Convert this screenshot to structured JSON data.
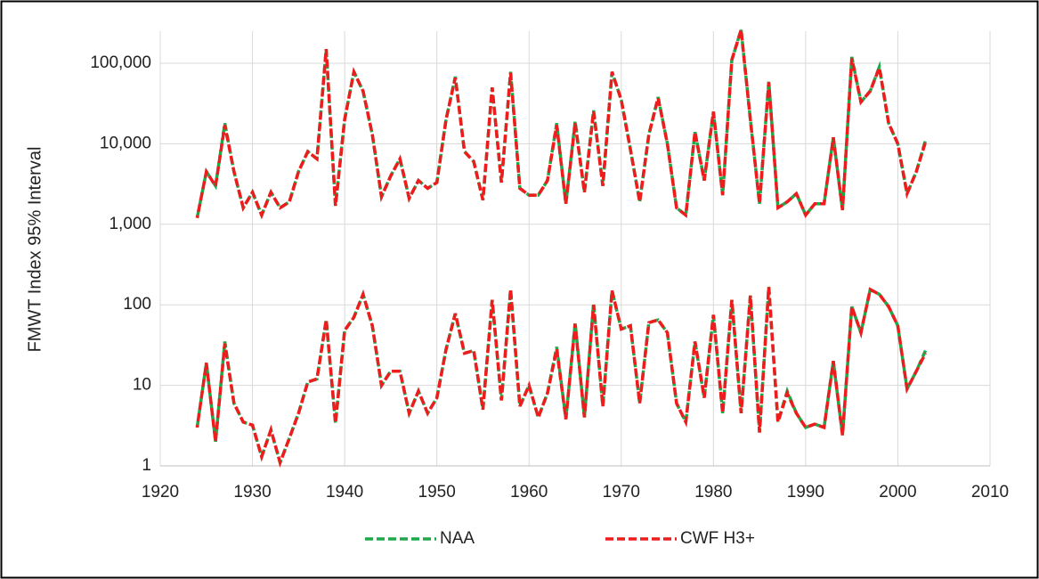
{
  "chart_data": {
    "type": "line",
    "log_y": true,
    "grid": true,
    "legend": "bottom",
    "y_label": "FMWT Index 95% Interval",
    "x": [
      1924,
      1925,
      1926,
      1927,
      1928,
      1929,
      1930,
      1931,
      1932,
      1933,
      1934,
      1935,
      1936,
      1937,
      1938,
      1939,
      1940,
      1941,
      1942,
      1943,
      1944,
      1945,
      1946,
      1947,
      1948,
      1949,
      1950,
      1951,
      1952,
      1953,
      1954,
      1955,
      1956,
      1957,
      1958,
      1959,
      1960,
      1961,
      1962,
      1963,
      1964,
      1965,
      1966,
      1967,
      1968,
      1969,
      1970,
      1971,
      1972,
      1973,
      1974,
      1975,
      1976,
      1977,
      1978,
      1979,
      1980,
      1981,
      1982,
      1983,
      1984,
      1985,
      1986,
      1987,
      1988,
      1989,
      1990,
      1991,
      1992,
      1993,
      1994,
      1995,
      1996,
      1997,
      1998,
      1999,
      2000,
      2001,
      2002,
      2003
    ],
    "xlim": [
      1920,
      2010
    ],
    "xticks": [
      1920,
      1930,
      1940,
      1950,
      1960,
      1970,
      1980,
      1990,
      2000,
      2010
    ],
    "ylim": [
      1,
      250000
    ],
    "yticks": [
      1,
      10,
      100,
      {
        "value": 1000,
        "label": "1,000"
      },
      {
        "value": 10000,
        "label": "10,000"
      },
      {
        "value": 100000,
        "label": "100,000"
      }
    ],
    "series": [
      {
        "name": "NAA",
        "color": "#1fa84a",
        "upper": [
          1200,
          4500,
          3000,
          18000,
          4500,
          1600,
          2500,
          1300,
          2500,
          1600,
          1900,
          4500,
          8000,
          6500,
          150000,
          1700,
          20000,
          78000,
          45000,
          13000,
          2200,
          4000,
          6500,
          2100,
          3500,
          2800,
          3300,
          20000,
          68000,
          8000,
          6000,
          2000,
          50000,
          3300,
          78000,
          2800,
          2300,
          2300,
          3500,
          18000,
          1800,
          19000,
          2500,
          26000,
          3000,
          78000,
          35000,
          8500,
          1900,
          13000,
          38000,
          10000,
          1600,
          1300,
          14000,
          3500,
          25000,
          2300,
          110000,
          260000,
          20000,
          1800,
          60000,
          1600,
          1900,
          2400,
          1300,
          1800,
          1800,
          12000,
          1500,
          120000,
          33000,
          45000,
          90000,
          18000,
          10000,
          2400,
          4500,
          11000
        ],
        "lower": [
          3,
          19,
          2,
          35,
          6,
          3.5,
          3.2,
          1.3,
          2.8,
          1.1,
          2.2,
          4.5,
          11,
          12,
          65,
          3.4,
          48,
          70,
          135,
          55,
          10,
          15,
          15,
          4.5,
          8.5,
          4.5,
          7,
          28,
          78,
          25,
          27,
          5,
          115,
          6.5,
          155,
          5.5,
          10,
          4,
          8,
          30,
          3.8,
          60,
          4,
          105,
          5.5,
          150,
          50,
          55,
          6,
          60,
          65,
          45,
          6,
          3.5,
          35,
          7,
          75,
          4.5,
          115,
          4.5,
          130,
          2.6,
          170,
          3.5,
          8.5,
          4.5,
          3,
          3.3,
          3,
          20,
          2.4,
          95,
          45,
          155,
          135,
          95,
          55,
          9,
          15,
          27
        ]
      },
      {
        "name": "CWF H3+",
        "color": "#ee1c1c",
        "upper": [
          1200,
          4500,
          3000,
          17000,
          4500,
          1600,
          2500,
          1300,
          2500,
          1600,
          1900,
          4500,
          8000,
          6500,
          150000,
          1700,
          20000,
          78000,
          45000,
          13000,
          2200,
          4000,
          6500,
          2100,
          3500,
          2800,
          3300,
          20000,
          66000,
          8000,
          6000,
          2000,
          50000,
          3300,
          76000,
          2800,
          2300,
          2300,
          3500,
          17000,
          1800,
          18000,
          2500,
          25000,
          3000,
          78000,
          35000,
          8500,
          1900,
          13000,
          37000,
          10000,
          1600,
          1300,
          14000,
          3500,
          25000,
          2300,
          110000,
          260000,
          20000,
          1800,
          58000,
          1600,
          1900,
          2400,
          1300,
          1800,
          1800,
          12000,
          1500,
          115000,
          33000,
          45000,
          88000,
          18000,
          10000,
          2400,
          4500,
          10500
        ],
        "lower": [
          3,
          19,
          2,
          33,
          6,
          3.5,
          3.2,
          1.3,
          2.8,
          1.1,
          2.2,
          4.5,
          11,
          12,
          65,
          3.4,
          48,
          70,
          135,
          55,
          10,
          15,
          15,
          4.5,
          8.5,
          4.5,
          7,
          28,
          78,
          25,
          27,
          5,
          115,
          6.5,
          155,
          5.5,
          10,
          4,
          8,
          28,
          3.8,
          58,
          4,
          100,
          5.5,
          150,
          50,
          55,
          6,
          60,
          65,
          45,
          6,
          3.5,
          35,
          7,
          75,
          4.5,
          115,
          4.5,
          130,
          2.6,
          165,
          3.5,
          8,
          4.5,
          3,
          3.3,
          3,
          20,
          2.4,
          95,
          45,
          155,
          135,
          95,
          55,
          9,
          15,
          25
        ]
      }
    ]
  }
}
